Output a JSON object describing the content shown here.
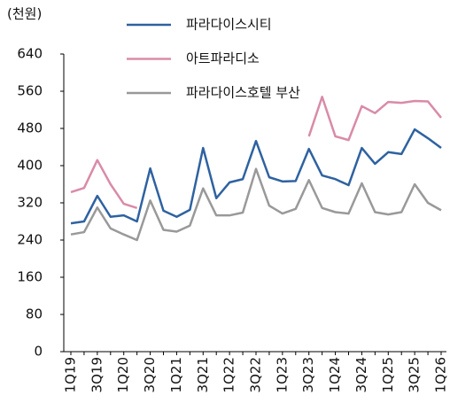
{
  "chart_data": {
    "type": "line",
    "unit_label": "(천원)",
    "categories": [
      "1Q19",
      null,
      "3Q19",
      null,
      "1Q20",
      null,
      "3Q20",
      null,
      "1Q21",
      null,
      "3Q21",
      null,
      "1Q22",
      null,
      "3Q22",
      null,
      "1Q23",
      null,
      "3Q23",
      null,
      "1Q24",
      null,
      "3Q24",
      null,
      "1Q25",
      null,
      "3Q25",
      null,
      "1Q26"
    ],
    "series": [
      {
        "name": "파라다이스시티",
        "color": "#2e62a0",
        "values": [
          276,
          280,
          335,
          290,
          293,
          280,
          394,
          303,
          290,
          305,
          438,
          330,
          364,
          371,
          453,
          375,
          366,
          367,
          436,
          379,
          371,
          358,
          438,
          404,
          429,
          425,
          478,
          459,
          438
        ]
      },
      {
        "name": "아트파라디소",
        "color": "#d98ba8",
        "values": [
          343,
          352,
          412,
          360,
          318,
          309,
          null,
          null,
          null,
          null,
          null,
          null,
          null,
          null,
          null,
          null,
          null,
          null,
          463,
          548,
          463,
          455,
          528,
          513,
          537,
          535,
          539,
          538,
          503
        ]
      },
      {
        "name": "파라다이스호텔 부산",
        "color": "#999999",
        "values": [
          252,
          257,
          310,
          265,
          252,
          240,
          325,
          262,
          258,
          271,
          351,
          293,
          293,
          299,
          393,
          314,
          297,
          307,
          369,
          309,
          300,
          297,
          362,
          300,
          295,
          300,
          360,
          320,
          304
        ]
      }
    ],
    "ylim": [
      0,
      640
    ],
    "yticks": [
      0,
      80,
      160,
      240,
      320,
      400,
      480,
      560,
      640
    ]
  }
}
